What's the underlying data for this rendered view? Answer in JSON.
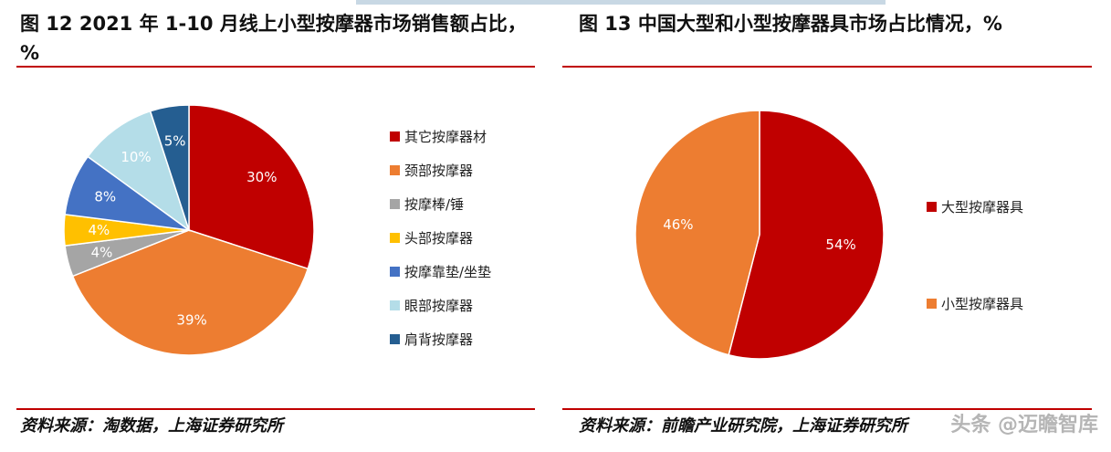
{
  "figures": [
    {
      "title": "图 12 2021 年 1-10 月线上小型按摩器市场销售额占比，%",
      "source": "资料来源：淘数据，上海证券研究所"
    },
    {
      "title": "图 13 中国大型和小型按摩器具市场占比情况，%",
      "source": "资料来源：前瞻产业研究院，上海证券研究所"
    }
  ],
  "watermark": "头条 @迈瞻智库",
  "chart_data": [
    {
      "type": "pie",
      "title": "图 12 2021 年 1-10 月线上小型按摩器市场销售额占比，%",
      "legend_position": "right",
      "categories": [
        "其它按摩器材",
        "颈部按摩器",
        "按摩棒/锤",
        "头部按摩器",
        "按摩靠垫/坐垫",
        "眼部按摩器",
        "肩背按摩器"
      ],
      "values": [
        30,
        39,
        4,
        4,
        8,
        10,
        5
      ],
      "labels": [
        "30%",
        "39%",
        "4%",
        "4%",
        "8%",
        "10%",
        "5%"
      ],
      "colors": [
        "#c00000",
        "#ed7d31",
        "#a5a5a5",
        "#ffc000",
        "#4472c4",
        "#b4dde8",
        "#255e91"
      ]
    },
    {
      "type": "pie",
      "title": "图 13 中国大型和小型按摩器具市场占比情况，%",
      "legend_position": "right",
      "categories": [
        "大型按摩器具",
        "小型按摩器具"
      ],
      "values": [
        54,
        46
      ],
      "labels": [
        "54%",
        "46%"
      ],
      "colors": [
        "#c00000",
        "#ed7d31"
      ]
    }
  ]
}
